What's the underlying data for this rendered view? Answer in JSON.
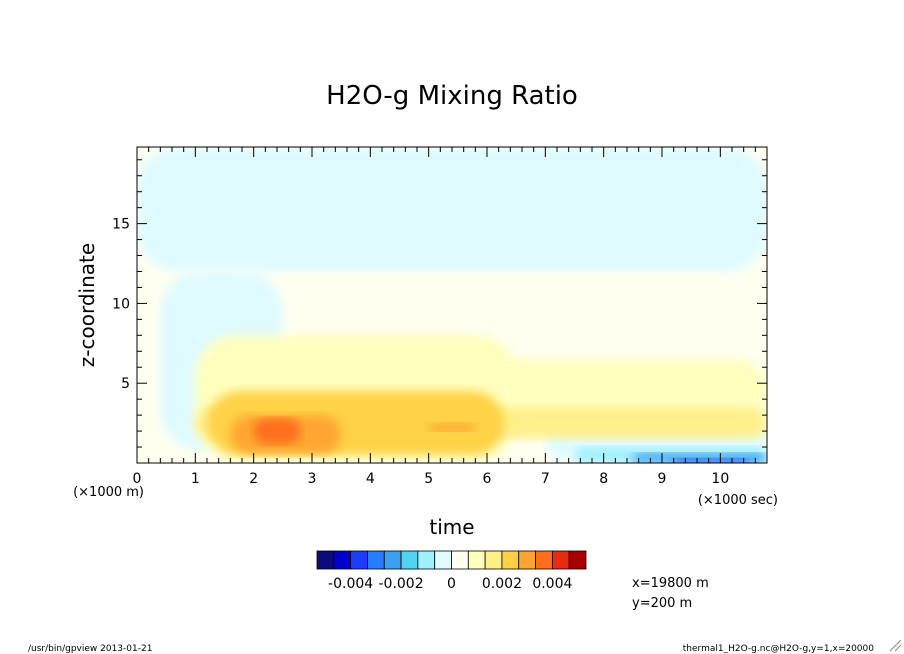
{
  "chart_data": {
    "type": "heatmap",
    "title": "H2O-g Mixing Ratio",
    "xlabel": "time",
    "ylabel": "z-coordinate",
    "x_unit_label": "(×1000 sec)",
    "y_unit_label": "(×1000 m)",
    "xlim": [
      0,
      10.8
    ],
    "ylim": [
      0,
      19.8
    ],
    "x_ticks": [
      0,
      1,
      2,
      3,
      4,
      5,
      6,
      7,
      8,
      9,
      10
    ],
    "y_ticks": [
      5,
      10,
      15
    ],
    "colorbar": {
      "colors": [
        "#0a0a78",
        "#0000c8",
        "#1e3cff",
        "#287cff",
        "#3ca0f0",
        "#50d2f0",
        "#a0f0ff",
        "#e0fbff",
        "#fffff0",
        "#ffffbe",
        "#fff08c",
        "#ffd246",
        "#ffa532",
        "#ff6e1e",
        "#e62d14",
        "#a50000"
      ],
      "tick_labels": [
        "-0.004",
        "-0.002",
        "0",
        "0.002",
        "0.004"
      ]
    },
    "regions": [
      {
        "level": "slightly-positive",
        "color": "#fffff0",
        "x": [
          0,
          10.8
        ],
        "y": [
          0,
          19.8
        ]
      },
      {
        "level": "slightly-negative",
        "color": "#e0fbff",
        "x": [
          0,
          10.8
        ],
        "y": [
          12.0,
          19.8
        ]
      },
      {
        "level": "slightly-negative",
        "color": "#e0fbff",
        "x": [
          0.4,
          2.5
        ],
        "y": [
          0.8,
          12.0
        ]
      },
      {
        "level": "slightly-negative",
        "color": "#e0fbff",
        "x": [
          7.0,
          10.8
        ],
        "y": [
          0.2,
          2.5
        ]
      },
      {
        "level": "low-positive",
        "color": "#ffffbe",
        "x": [
          5.0,
          10.8
        ],
        "y": [
          2.5,
          6.5
        ]
      },
      {
        "level": "low-positive",
        "color": "#ffffbe",
        "x": [
          1.0,
          6.5
        ],
        "y": [
          0.2,
          8.0
        ]
      },
      {
        "level": "positive",
        "color": "#fff08c",
        "x": [
          1.0,
          10.8
        ],
        "y": [
          1.5,
          3.5
        ]
      },
      {
        "level": "positive",
        "color": "#ffd246",
        "x": [
          1.2,
          6.3
        ],
        "y": [
          0.5,
          4.5
        ]
      },
      {
        "level": "high-positive",
        "color": "#ffa532",
        "x": [
          1.6,
          3.5
        ],
        "y": [
          0.6,
          3.0
        ]
      },
      {
        "level": "high-positive",
        "color": "#ffa532",
        "x": [
          5.0,
          5.8
        ],
        "y": [
          2.0,
          2.5
        ]
      },
      {
        "level": "very-high-positive",
        "color": "#ff6e1e",
        "x": [
          2.0,
          2.8
        ],
        "y": [
          1.2,
          2.8
        ]
      },
      {
        "level": "negative",
        "color": "#a0f0ff",
        "x": [
          7.5,
          10.8
        ],
        "y": [
          0.0,
          1.0
        ]
      },
      {
        "level": "strong-negative",
        "color": "#3ca0f0",
        "x": [
          8.5,
          10.8
        ],
        "y": [
          0.0,
          0.6
        ]
      },
      {
        "level": "very-strong-negative",
        "color": "#1e3cff",
        "x": [
          9.2,
          10.5
        ],
        "y": [
          0.0,
          0.3
        ]
      }
    ]
  },
  "info": {
    "x_pos": "x=19800 m",
    "y_pos": "y=200 m",
    "footer_left": "/usr/bin/gpview  2013-01-21",
    "footer_right": "thermal1_H2O-g.nc@H2O-g,y=1,x=20000"
  }
}
